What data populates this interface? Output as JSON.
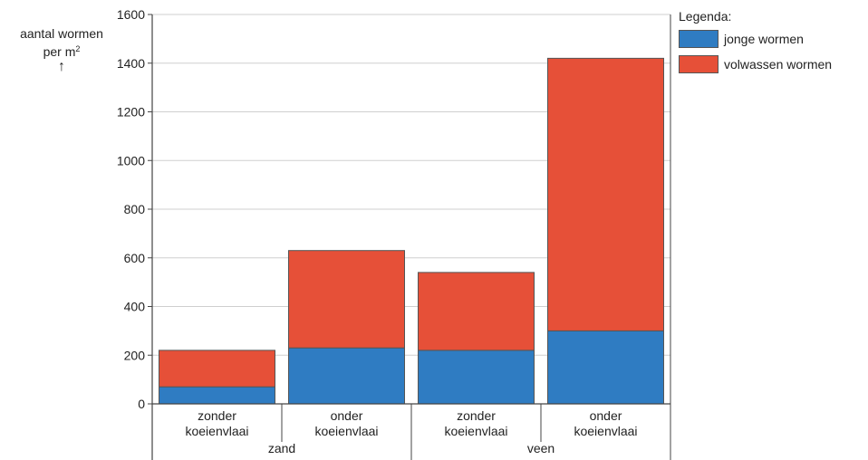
{
  "chart_data": {
    "type": "bar",
    "stacked": true,
    "ylabel_line1": "aantal wormen",
    "ylabel_line2_base": "per m",
    "ylabel_line2_sup": "2",
    "ylabel_arrow": "↑",
    "ylim": [
      0,
      1600
    ],
    "yticks": [
      0,
      200,
      400,
      600,
      800,
      1000,
      1200,
      1400,
      1600
    ],
    "grid": true,
    "categories": [
      {
        "line1": "zonder",
        "line2": "koeienvlaai"
      },
      {
        "line1": "onder",
        "line2": "koeienvlaai"
      },
      {
        "line1": "zonder",
        "line2": "koeienvlaai"
      },
      {
        "line1": "onder",
        "line2": "koeienvlaai"
      }
    ],
    "groups": [
      {
        "label": "zand",
        "categories": [
          0,
          1
        ]
      },
      {
        "label": "veen",
        "categories": [
          2,
          3
        ]
      }
    ],
    "series": [
      {
        "name": "jonge wormen",
        "color": "#2f7cc2",
        "values": [
          70,
          230,
          220,
          300
        ]
      },
      {
        "name": "volwassen wormen",
        "color": "#e65038",
        "values": [
          150,
          400,
          320,
          1120
        ]
      }
    ],
    "legend_title": "Legenda:",
    "legend_position": "top-right"
  }
}
